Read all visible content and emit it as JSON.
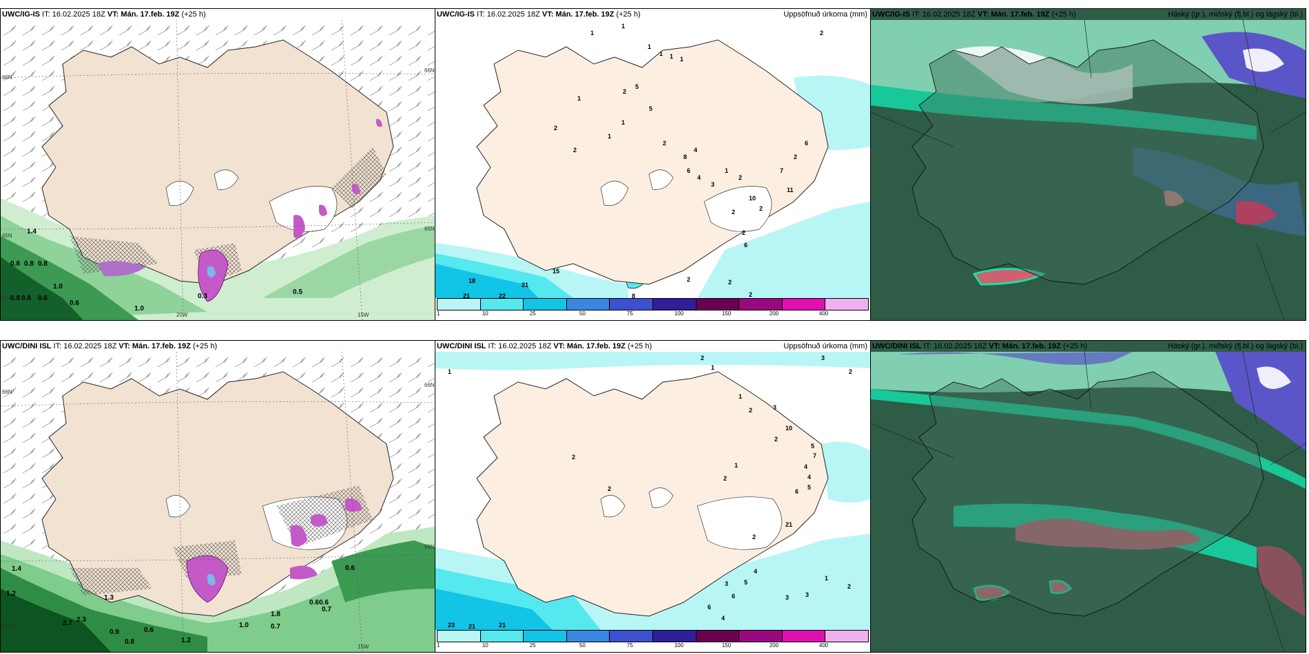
{
  "panels": {
    "p1": {
      "model": "UWC/IG-IS",
      "it_label": " IT: 16.02.2025 18Z ",
      "vt_label": "VT: Mán. 17.feb. 19Z",
      "lead": " (+25 h)",
      "right_title": ""
    },
    "p2": {
      "model": "UWC/IG-IS",
      "it_label": " IT: 16.02.2025 18Z ",
      "vt_label": "VT: Mán. 17.feb. 19Z",
      "lead": " (+25 h)",
      "right_title": "Uppsöfnuð úrkoma (mm)"
    },
    "p3": {
      "model": "UWC/IG-IS",
      "it_label": " IT: 16.02.2025 18Z ",
      "vt_label": "VT: Mán. 17.feb. 19Z",
      "lead": " (+25 h)",
      "right_title": "Háský (gr.), miðský (fj.bl.) og lágský (bl.)"
    },
    "p4": {
      "model": "UWC/DINI ISL",
      "it_label": " IT: 16.02.2025 18Z ",
      "vt_label": "VT: Mán. 17.feb. 19Z",
      "lead": " (+25 h)",
      "right_title": ""
    },
    "p5": {
      "model": "UWC/DINI ISL",
      "it_label": " IT: 16.02.2025 18Z ",
      "vt_label": "VT: Mán. 17.feb. 19Z",
      "lead": " (+25 h)",
      "right_title": "Uppsöfnuð úrkoma (mm)"
    },
    "p6": {
      "model": "UWC/DINI ISL",
      "it_label": " IT: 16.02.2025 18Z ",
      "vt_label": "VT: Mán. 17.feb. 19Z",
      "lead": " (+25 h)",
      "right_title": "Háský (gr.), miðský (fj.bl.) og lágský (bl.)"
    }
  },
  "axes": {
    "lat_66": "66N",
    "lat_65": "65N",
    "lat_64": "64N",
    "lon_20": "20W",
    "lon_15": "15W"
  },
  "precip_legend": {
    "ticks": [
      "1",
      "10",
      "25",
      "50",
      "75",
      "100",
      "150",
      "200",
      "400"
    ],
    "colors": [
      "#b8f6f6",
      "#55e8ee",
      "#12c4e6",
      "#3a86e0",
      "#3d50d0",
      "#2f1f9a",
      "#6a0050",
      "#9a0880",
      "#e010b0",
      "#f0b0f0"
    ]
  },
  "precip_labels_top": [
    "1",
    "1",
    "2",
    "1",
    "1",
    "1",
    "1",
    "2",
    "1",
    "2",
    "5",
    "1",
    "2",
    "1",
    "5",
    "2",
    "8",
    "4",
    "6",
    "4",
    "3",
    "1",
    "2",
    "7",
    "2",
    "6",
    "11",
    "10",
    "2",
    "2",
    "2",
    "6",
    "18",
    "21",
    "15",
    "21",
    "22",
    "8",
    "2",
    "2",
    "2"
  ],
  "precip_labels_bottom": [
    "2",
    "1",
    "3",
    "1",
    "2",
    "1",
    "2",
    "3",
    "10",
    "2",
    "5",
    "7",
    "1",
    "4",
    "2",
    "2",
    "4",
    "2",
    "5",
    "6",
    "21",
    "2",
    "4",
    "5",
    "3",
    "6",
    "6",
    "4",
    "1",
    "2",
    "3",
    "3",
    "23",
    "21",
    "21"
  ],
  "wind_labels_top": [
    "1.4",
    "0.8",
    "0.8",
    "0.8",
    "1.0",
    "0.8",
    "0.8",
    "0.6",
    "0.6",
    "1.0",
    "0.3",
    "0.5"
  ],
  "wind_labels_bottom": [
    "1.4",
    "1.2",
    "1.3",
    "2.7",
    "2.3",
    "0.9",
    "0.6",
    "0.8",
    "1.2",
    "1.0",
    "1.8",
    "0.7",
    "0.6",
    "0.6",
    "0.7",
    "0.6"
  ],
  "colors": {
    "land": "#f2e2d2",
    "ocean_cloud": "#30614a",
    "white_sea": "#ffffff"
  }
}
